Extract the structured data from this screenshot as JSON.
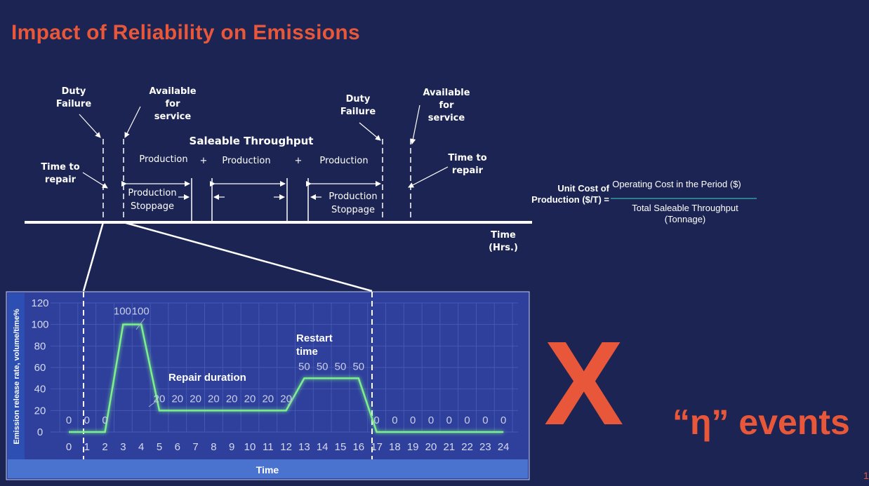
{
  "title": "Impact of Reliability on Emissions",
  "timeline": {
    "duty_failure_1": "Duty\nFailure",
    "available_1": "Available\nfor\nservice",
    "time_to_repair_1": "Time to\nrepair",
    "saleable_throughput": "Saleable Throughput",
    "production_1": "Production",
    "production_2": "Production",
    "production_3": "Production",
    "plus_1": "+",
    "plus_2": "+",
    "stoppage_1": "Production\nStoppage",
    "stoppage_2": "Production\nStoppage",
    "duty_failure_2": "Duty\nFailure",
    "available_2": "Available\nfor\nservice",
    "time_to_repair_2": "Time to\nrepair",
    "axis_label": "Time (Hrs.)"
  },
  "formula": {
    "lhs": "Unit Cost of\nProduction ($/T) =",
    "numerator": "Operating Cost in the Period ($)",
    "denominator": "Total Saleable Throughput\n(Tonnage)"
  },
  "chart_data": {
    "type": "line",
    "x": [
      0,
      1,
      2,
      3,
      4,
      5,
      6,
      7,
      8,
      9,
      10,
      11,
      12,
      13,
      14,
      15,
      16,
      17,
      18,
      19,
      20,
      21,
      22,
      23,
      24
    ],
    "y": [
      0,
      0,
      0,
      100,
      100,
      20,
      20,
      20,
      20,
      20,
      20,
      20,
      20,
      50,
      50,
      50,
      50,
      0,
      0,
      0,
      0,
      0,
      0,
      0,
      0
    ],
    "ylabel": "Emission release rate, volume/time%",
    "xlabel": "Time",
    "ylim": [
      0,
      120
    ],
    "yticks": [
      0,
      20,
      40,
      60,
      80,
      100,
      120
    ],
    "grid": true,
    "line_color": "#7cf08a",
    "annotations": {
      "repair_duration": "Repair duration",
      "restart_time": "Restart\ntime"
    }
  },
  "multiplier": {
    "symbol": "X",
    "events": "“η” events"
  },
  "page_number": "1",
  "colors": {
    "accent": "#e8573a",
    "background": "#1b2452",
    "chart_bg": "#2e3f9c"
  }
}
